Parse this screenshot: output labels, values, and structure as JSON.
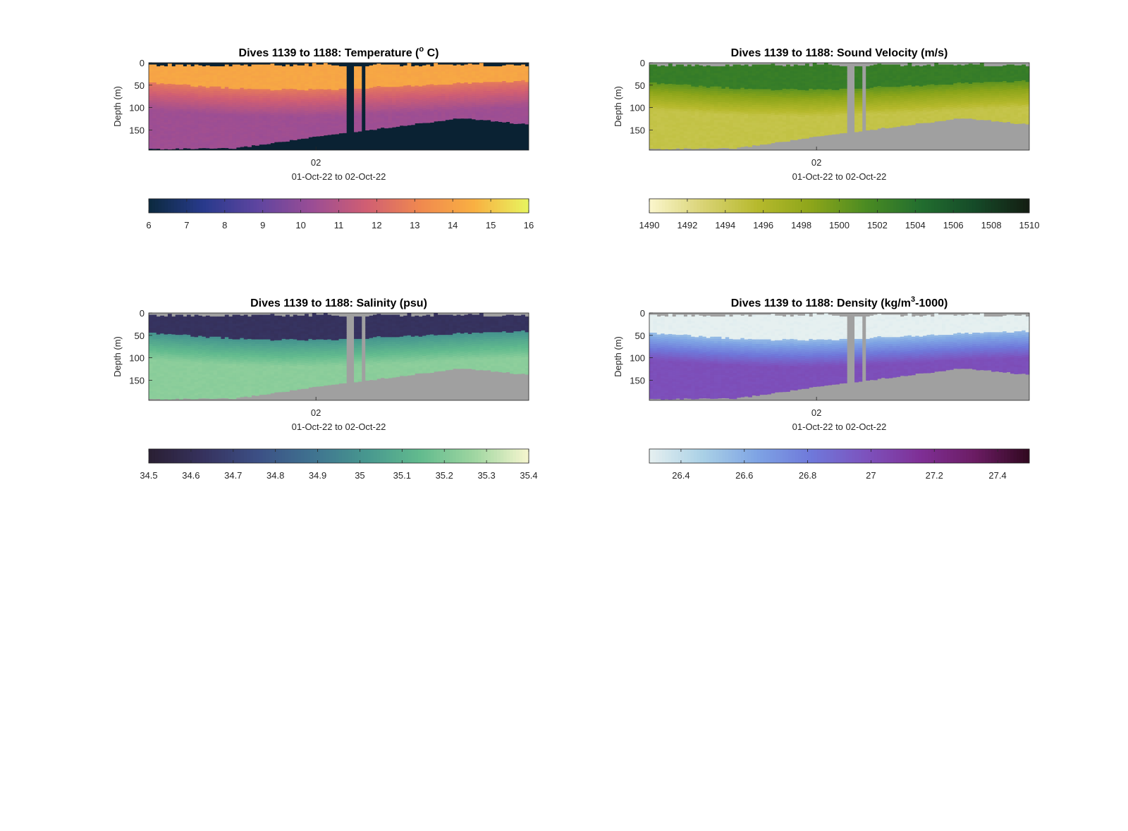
{
  "chart_data": [
    {
      "type": "heatmap",
      "title": "Dives 1139 to 1188: Temperature (° C)",
      "title_parts": {
        "pre": "Dives 1139 to 1188: Temperature (",
        "sup": "o",
        "post": " C)"
      },
      "ylabel": "Depth (m)",
      "xlabel": "01-Oct-22 to 02-Oct-22",
      "xtick_labels": [
        "02"
      ],
      "yticks": [
        0,
        50,
        100,
        150
      ],
      "ylim": [
        0,
        195
      ],
      "colorbar": {
        "min": 6,
        "max": 16,
        "ticks": [
          "6",
          "7",
          "8",
          "9",
          "10",
          "11",
          "12",
          "13",
          "14",
          "15",
          "16"
        ]
      },
      "colormap": [
        "#0b2a3e",
        "#283a8c",
        "#5e45a0",
        "#9a4d95",
        "#d05e73",
        "#f0894f",
        "#f9b042",
        "#e8f55f"
      ],
      "nodata_color": "#0a2233",
      "surface_value": 14.2,
      "mid_value": 12.6,
      "deep_value": 10.4,
      "shallow_variation": 0.6
    },
    {
      "type": "heatmap",
      "title": "Dives 1139 to 1188: Sound Velocity (m/s)",
      "title_parts": {
        "pre": "Dives 1139 to 1188: Sound Velocity (m/s)",
        "sup": "",
        "post": ""
      },
      "ylabel": "Depth (m)",
      "xlabel": "01-Oct-22 to 02-Oct-22",
      "xtick_labels": [
        "02"
      ],
      "yticks": [
        0,
        50,
        100,
        150
      ],
      "ylim": [
        0,
        195
      ],
      "colorbar": {
        "min": 1490,
        "max": 1510,
        "ticks": [
          "1490",
          "1492",
          "1494",
          "1496",
          "1498",
          "1500",
          "1502",
          "1504",
          "1506",
          "1508",
          "1510"
        ]
      },
      "colormap": [
        "#fbf6cd",
        "#d9d374",
        "#b6b92c",
        "#8ca51a",
        "#4a8b22",
        "#226e2f",
        "#154a28",
        "#141d12"
      ],
      "nodata_color": "#a0a0a0",
      "surface_value": 1502.8,
      "mid_value": 1500.5,
      "deep_value": 1494.6,
      "shallow_variation": 1.2
    },
    {
      "type": "heatmap",
      "title": "Dives 1139 to 1188: Salinity (psu)",
      "title_parts": {
        "pre": "Dives 1139 to 1188: Salinity (psu)",
        "sup": "",
        "post": ""
      },
      "ylabel": "Depth (m)",
      "xlabel": "01-Oct-22 to 02-Oct-22",
      "xtick_labels": [
        "02"
      ],
      "yticks": [
        0,
        50,
        100,
        150
      ],
      "ylim": [
        0,
        195
      ],
      "colorbar": {
        "min": 34.5,
        "max": 35.4,
        "ticks": [
          "34.5",
          "34.6",
          "34.7",
          "34.8",
          "34.9",
          "35",
          "35.1",
          "35.2",
          "35.3",
          "35.4"
        ]
      },
      "colormap": [
        "#2a1f33",
        "#36325e",
        "#3c4f85",
        "#3f7290",
        "#47978f",
        "#62bb8e",
        "#9fd6a1",
        "#f7f6cf"
      ],
      "nodata_color": "#a0a0a0",
      "surface_value": 34.63,
      "mid_value": 35.0,
      "deep_value": 35.23,
      "shallow_variation": 0.05
    },
    {
      "type": "heatmap",
      "title": "Dives 1139 to 1188: Density (kg/m³-1000)",
      "title_parts": {
        "pre": "Dives 1139 to 1188: Density (kg/m",
        "sup": "3",
        "post": "-1000)"
      },
      "ylabel": "Depth (m)",
      "xlabel": "01-Oct-22 to 02-Oct-22",
      "xtick_labels": [
        "02"
      ],
      "yticks": [
        0,
        50,
        100,
        150
      ],
      "ylim": [
        0,
        195
      ],
      "colorbar": {
        "min": 26.3,
        "max": 27.5,
        "ticks": [
          "26.4",
          "26.6",
          "26.8",
          "27",
          "27.2",
          "27.4"
        ]
      },
      "colormap": [
        "#e6f0f0",
        "#a9d0e6",
        "#7ea3e4",
        "#6f78da",
        "#7d52bd",
        "#7f2f95",
        "#6b1c63",
        "#30081f"
      ],
      "nodata_color": "#a0a0a0",
      "surface_value": 26.3,
      "mid_value": 26.55,
      "deep_value": 27.0,
      "shallow_variation": 0.08
    }
  ],
  "section": {
    "profiles": 100,
    "gap_columns": [
      52,
      53,
      56
    ],
    "bottom_depth_start": 192,
    "bottom_depth_min_at": 0.22,
    "bottom_depth_mid": 158,
    "bottom_depth_ridge": 123,
    "bottom_depth_end": 137
  }
}
